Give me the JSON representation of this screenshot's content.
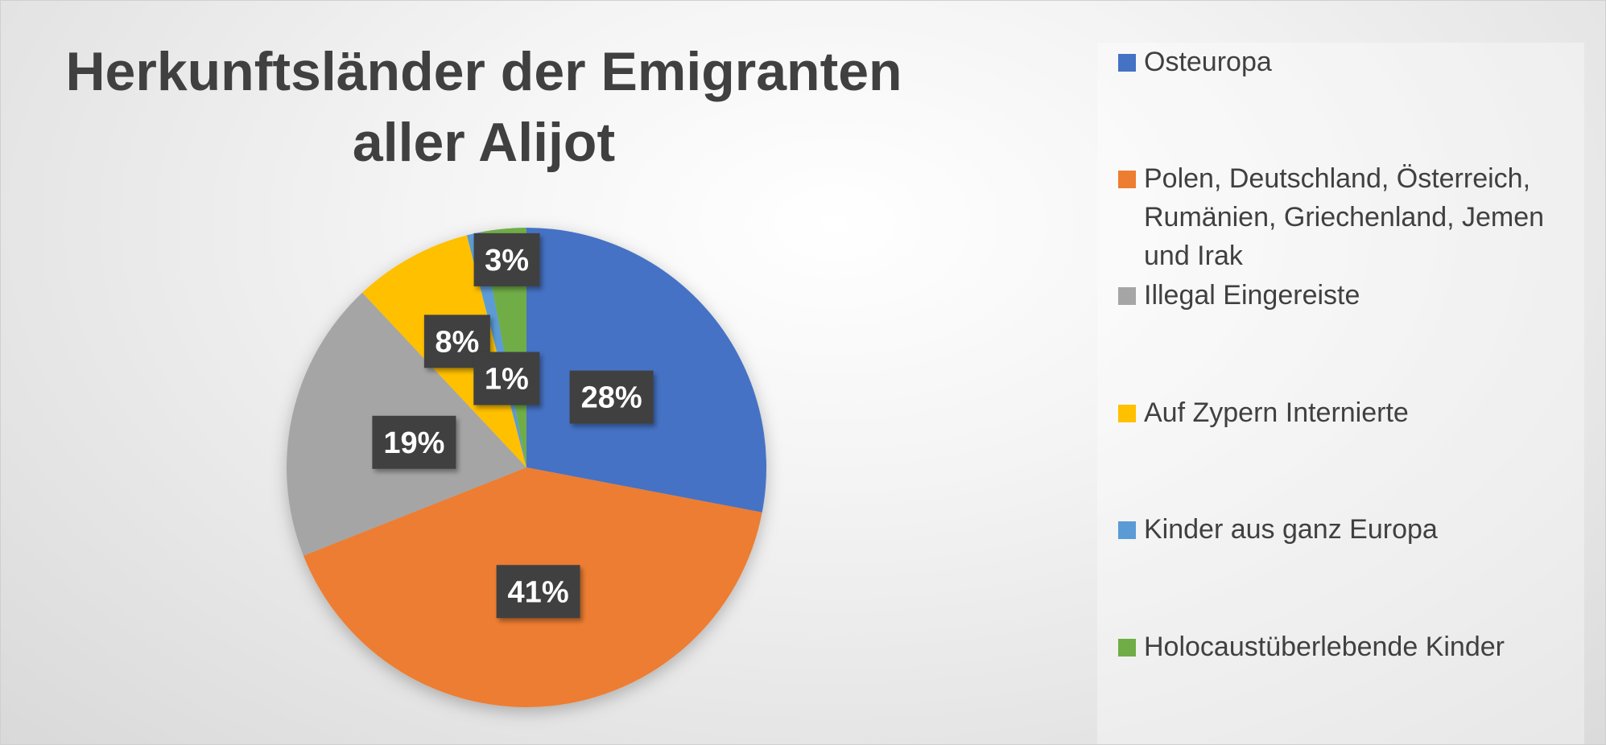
{
  "chart_data": {
    "type": "pie",
    "title": "Herkunftsländer der Emigranten\naller Alijot",
    "legend_position": "right",
    "slices": [
      {
        "label": "Osteuropa",
        "value": 28,
        "display": "28%",
        "color": "#4472C4"
      },
      {
        "label": "Polen, Deutschland, Österreich, Rumänien, Griechenland, Jemen und Irak",
        "value": 41,
        "display": "41%",
        "color": "#ED7D31"
      },
      {
        "label": "Illegal Eingereiste",
        "value": 19,
        "display": "19%",
        "color": "#A5A5A5"
      },
      {
        "label": "Auf Zypern Internierte",
        "value": 8,
        "display": "8%",
        "color": "#FFC000"
      },
      {
        "label": "Kinder aus ganz Europa",
        "value": 1,
        "display": "1%",
        "color": "#5B9BD5"
      },
      {
        "label": "Holocaustüberlebende Kinder",
        "value": 3,
        "display": "3%",
        "color": "#70AD47"
      }
    ]
  }
}
